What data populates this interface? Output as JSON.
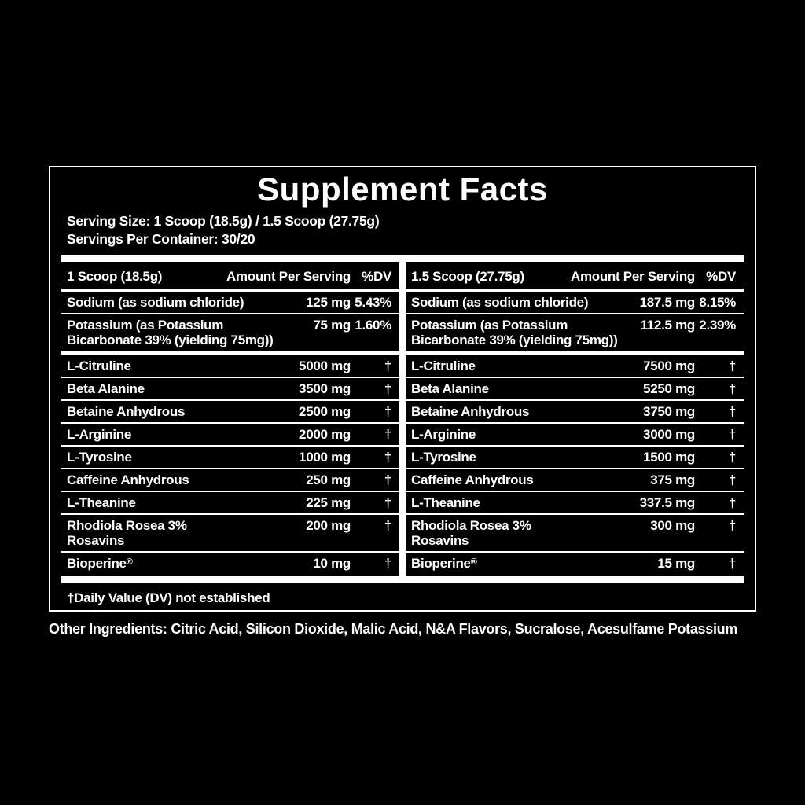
{
  "label": {
    "title": "Supplement Facts",
    "serving_size_line": "Serving Size: 1 Scoop (18.5g) / 1.5 Scoop (27.75g)",
    "servings_line": "Servings Per Container: 30/20",
    "footnote": "†Daily Value (DV) not established",
    "other_ingredients": "Other Ingredients: Citric Acid, Silicon Dioxide, Malic Acid, N&A Flavors, Sucralose, Acesulfame Potassium",
    "colors": {
      "background": "#000000",
      "text": "#ffffff"
    },
    "columns": [
      {
        "header": {
          "serving": "1 Scoop (18.5g)",
          "amount_label": "Amount Per Serving",
          "dv_label": "%DV"
        },
        "minerals": [
          {
            "name": "Sodium (as sodium chloride)",
            "amount": "125 mg",
            "dv": "5.43%"
          },
          {
            "name": "Potassium (as Potassium",
            "name2": "Bicarbonate 39% (yielding 75mg))",
            "amount": "75 mg",
            "dv": "1.60%"
          }
        ],
        "ingredients": [
          {
            "name": "L-Citruline",
            "amount": "5000 mg",
            "dv": "†"
          },
          {
            "name": "Beta Alanine",
            "amount": "3500 mg",
            "dv": "†"
          },
          {
            "name": "Betaine Anhydrous",
            "amount": "2500 mg",
            "dv": "†"
          },
          {
            "name": "L-Arginine",
            "amount": "2000 mg",
            "dv": "†"
          },
          {
            "name": "L-Tyrosine",
            "amount": "1000 mg",
            "dv": "†"
          },
          {
            "name": "Caffeine Anhydrous",
            "amount": "250 mg",
            "dv": "†"
          },
          {
            "name": "L-Theanine",
            "amount": "225 mg",
            "dv": "†"
          },
          {
            "name": "Rhodiola Rosea 3%",
            "name2": "Rosavins",
            "amount": "200 mg",
            "dv": "†"
          },
          {
            "name": "Bioperine",
            "regmark": "®",
            "amount": "10 mg",
            "dv": "†"
          }
        ]
      },
      {
        "header": {
          "serving": "1.5 Scoop (27.75g)",
          "amount_label": "Amount Per Serving",
          "dv_label": "%DV"
        },
        "minerals": [
          {
            "name": "Sodium (as sodium chloride)",
            "amount": "187.5 mg",
            "dv": "8.15%"
          },
          {
            "name": "Potassium (as Potassium",
            "name2": "Bicarbonate 39% (yielding 75mg))",
            "amount": "112.5 mg",
            "dv": "2.39%"
          }
        ],
        "ingredients": [
          {
            "name": "L-Citruline",
            "amount": "7500 mg",
            "dv": "†"
          },
          {
            "name": "Beta Alanine",
            "amount": "5250 mg",
            "dv": "†"
          },
          {
            "name": "Betaine Anhydrous",
            "amount": "3750 mg",
            "dv": "†"
          },
          {
            "name": "L-Arginine",
            "amount": "3000 mg",
            "dv": "†"
          },
          {
            "name": "L-Tyrosine",
            "amount": "1500 mg",
            "dv": "†"
          },
          {
            "name": "Caffeine Anhydrous",
            "amount": "375 mg",
            "dv": "†"
          },
          {
            "name": "L-Theanine",
            "amount": "337.5 mg",
            "dv": "†"
          },
          {
            "name": "Rhodiola Rosea 3%",
            "name2": "Rosavins",
            "amount": "300 mg",
            "dv": "†"
          },
          {
            "name": "Bioperine",
            "regmark": "®",
            "amount": "15 mg",
            "dv": "†"
          }
        ]
      }
    ]
  }
}
